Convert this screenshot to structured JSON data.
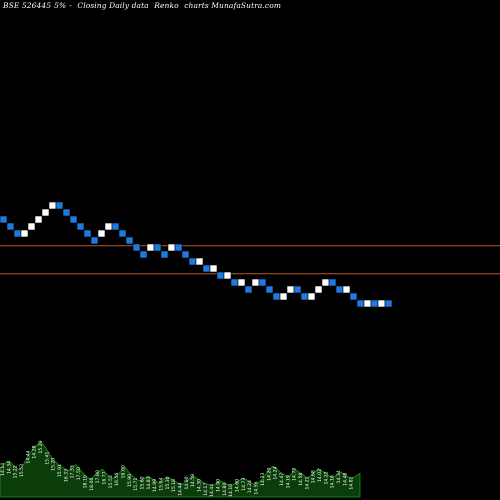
{
  "header": {
    "symbol": "BSE 526445",
    "pct": "5%",
    "arrow": "-",
    "caption": "Closing Daily data",
    "chart_kind": "Renko",
    "site": "charts MunafaSutra.com"
  },
  "colors": {
    "background": "#000000",
    "up_brick": "#ffffff",
    "down_brick": "#1f7ae0",
    "hline": "#c0552a",
    "volume_fill": "#0a3d0a",
    "volume_stroke": "#1aa01a",
    "label": "#ffffff"
  },
  "chart_data": {
    "type": "renko",
    "bricks": [
      {
        "level": 0,
        "dir": "down"
      },
      {
        "level": -1,
        "dir": "down"
      },
      {
        "level": -2,
        "dir": "down"
      },
      {
        "level": -2,
        "dir": "up"
      },
      {
        "level": -1,
        "dir": "up"
      },
      {
        "level": 0,
        "dir": "up"
      },
      {
        "level": 1,
        "dir": "up"
      },
      {
        "level": 2,
        "dir": "up"
      },
      {
        "level": 2,
        "dir": "down"
      },
      {
        "level": 1,
        "dir": "down"
      },
      {
        "level": 0,
        "dir": "down"
      },
      {
        "level": -1,
        "dir": "down"
      },
      {
        "level": -2,
        "dir": "down"
      },
      {
        "level": -3,
        "dir": "down"
      },
      {
        "level": -2,
        "dir": "up"
      },
      {
        "level": -1,
        "dir": "up"
      },
      {
        "level": -1,
        "dir": "down"
      },
      {
        "level": -2,
        "dir": "down"
      },
      {
        "level": -3,
        "dir": "down"
      },
      {
        "level": -4,
        "dir": "down"
      },
      {
        "level": -5,
        "dir": "down"
      },
      {
        "level": -4,
        "dir": "up"
      },
      {
        "level": -4,
        "dir": "down"
      },
      {
        "level": -5,
        "dir": "down"
      },
      {
        "level": -4,
        "dir": "up"
      },
      {
        "level": -4,
        "dir": "down"
      },
      {
        "level": -5,
        "dir": "down"
      },
      {
        "level": -6,
        "dir": "down"
      },
      {
        "level": -6,
        "dir": "up"
      },
      {
        "level": -7,
        "dir": "down"
      },
      {
        "level": -7,
        "dir": "up"
      },
      {
        "level": -8,
        "dir": "down"
      },
      {
        "level": -8,
        "dir": "up"
      },
      {
        "level": -9,
        "dir": "down"
      },
      {
        "level": -9,
        "dir": "up"
      },
      {
        "level": -10,
        "dir": "down"
      },
      {
        "level": -9,
        "dir": "up"
      },
      {
        "level": -9,
        "dir": "down"
      },
      {
        "level": -10,
        "dir": "down"
      },
      {
        "level": -11,
        "dir": "down"
      },
      {
        "level": -11,
        "dir": "up"
      },
      {
        "level": -10,
        "dir": "up"
      },
      {
        "level": -10,
        "dir": "down"
      },
      {
        "level": -11,
        "dir": "down"
      },
      {
        "level": -11,
        "dir": "up"
      },
      {
        "level": -10,
        "dir": "up"
      },
      {
        "level": -9,
        "dir": "up"
      },
      {
        "level": -9,
        "dir": "down"
      },
      {
        "level": -10,
        "dir": "down"
      },
      {
        "level": -10,
        "dir": "up"
      },
      {
        "level": -11,
        "dir": "down"
      },
      {
        "level": -12,
        "dir": "down"
      },
      {
        "level": -12,
        "dir": "up"
      },
      {
        "level": -12,
        "dir": "down"
      },
      {
        "level": -12,
        "dir": "up"
      },
      {
        "level": -12,
        "dir": "down"
      }
    ],
    "reference_levels": [
      -4.25,
      -8.25
    ],
    "volume": [
      0.45,
      0.52,
      0.58,
      0.55,
      0.48,
      0.44,
      0.5,
      0.62,
      0.72,
      0.8,
      0.85,
      0.88,
      0.8,
      0.7,
      0.6,
      0.55,
      0.5,
      0.46,
      0.42,
      0.48,
      0.52,
      0.45,
      0.38,
      0.32,
      0.28,
      0.35,
      0.4,
      0.45,
      0.38,
      0.32,
      0.3,
      0.36,
      0.42,
      0.48,
      0.4,
      0.34,
      0.28,
      0.26,
      0.3,
      0.34,
      0.3,
      0.26,
      0.22,
      0.28,
      0.32,
      0.3,
      0.26,
      0.22,
      0.2,
      0.24,
      0.3,
      0.34,
      0.3,
      0.26,
      0.22,
      0.2,
      0.18,
      0.22,
      0.26,
      0.24,
      0.2,
      0.18,
      0.22,
      0.26,
      0.3,
      0.28,
      0.24,
      0.2,
      0.22,
      0.28,
      0.36,
      0.44,
      0.5,
      0.46,
      0.4,
      0.36,
      0.32,
      0.38,
      0.44,
      0.4,
      0.36,
      0.3,
      0.34,
      0.4,
      0.46,
      0.42,
      0.38,
      0.34,
      0.32,
      0.36,
      0.4,
      0.36,
      0.32,
      0.3,
      0.34,
      0.38
    ],
    "vol_labels": [
      "14.14",
      "14.34",
      "15.22",
      "15.53",
      "14.44",
      "14.28",
      "15.29",
      "15.41",
      "15.20",
      "15.91",
      "16.33",
      "17.33",
      "17.50",
      "18.10",
      "18.00",
      "17.80",
      "16.77",
      "15.53",
      "16.56",
      "16.00",
      "15.90",
      "15.71",
      "15.60",
      "14.83",
      "14.99",
      "15.04",
      "15.30",
      "15.18",
      "14.44",
      "14.90",
      "14.59",
      "14.30",
      "14.17",
      "14.44",
      "14.90",
      "14.80",
      "14.10",
      "14.60",
      "14.73",
      "14.24",
      "14.56",
      "14.33",
      "14.20",
      "14.24",
      "14.47",
      "14.19",
      "14.78",
      "14.58",
      "14.21",
      "14.68",
      "14.02",
      "14.22",
      "14.16",
      "14.34",
      "14.48",
      "14.81"
    ]
  }
}
